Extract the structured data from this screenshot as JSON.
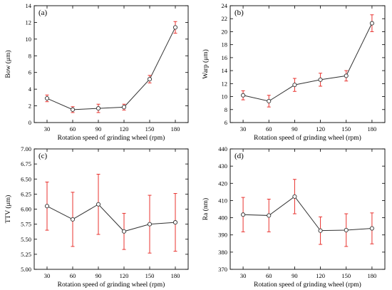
{
  "chart_data": [
    {
      "id": "a",
      "type": "line",
      "panel_label": "(a)",
      "xlabel": "Rotation speed of grinding wheel (rpm)",
      "ylabel": "Bow (μm)",
      "x": [
        30,
        60,
        90,
        120,
        150,
        180
      ],
      "values": [
        2.9,
        1.55,
        1.7,
        1.85,
        5.2,
        11.4
      ],
      "errors": [
        0.4,
        0.35,
        0.5,
        0.35,
        0.45,
        0.7
      ],
      "ylim": [
        0,
        14
      ],
      "yticks": [
        0,
        2,
        4,
        6,
        8,
        10,
        12,
        14
      ],
      "ytick_labels": [
        "0",
        "2",
        "4",
        "6",
        "8",
        "10",
        "12",
        "14"
      ],
      "xticks": [
        30,
        60,
        90,
        120,
        150,
        180
      ],
      "xtick_labels": [
        "30",
        "60",
        "90",
        "120",
        "150",
        "180"
      ]
    },
    {
      "id": "b",
      "type": "line",
      "panel_label": "(b)",
      "xlabel": "Rotation speed of grinding wheel (rpm)",
      "ylabel": "Warp (μm)",
      "x": [
        30,
        60,
        90,
        120,
        150,
        180
      ],
      "values": [
        10.2,
        9.3,
        11.8,
        12.6,
        13.2,
        21.3
      ],
      "errors": [
        0.7,
        0.9,
        1.0,
        1.0,
        0.8,
        1.3
      ],
      "ylim": [
        6,
        24
      ],
      "yticks": [
        6,
        8,
        10,
        12,
        14,
        16,
        18,
        20,
        22,
        24
      ],
      "ytick_labels": [
        "6",
        "8",
        "10",
        "12",
        "14",
        "16",
        "18",
        "20",
        "22",
        "24"
      ],
      "xticks": [
        30,
        60,
        90,
        120,
        150,
        180
      ],
      "xtick_labels": [
        "30",
        "60",
        "90",
        "120",
        "150",
        "180"
      ]
    },
    {
      "id": "c",
      "type": "line",
      "panel_label": "(c)",
      "xlabel": "Rotation speed of grinding wheel (rpm)",
      "ylabel": "TTV (μm)",
      "x": [
        30,
        60,
        90,
        120,
        150,
        180
      ],
      "values": [
        6.05,
        5.83,
        6.08,
        5.63,
        5.75,
        5.78
      ],
      "errors": [
        0.4,
        0.45,
        0.5,
        0.3,
        0.48,
        0.48
      ],
      "ylim": [
        5.0,
        7.0
      ],
      "yticks": [
        5.0,
        5.25,
        5.5,
        5.75,
        6.0,
        6.25,
        6.5,
        6.75,
        7.0
      ],
      "ytick_labels": [
        "5.00",
        "5.25",
        "5.50",
        "5.75",
        "6.00",
        "6.25",
        "6.50",
        "6.75",
        "7.00"
      ],
      "xticks": [
        30,
        60,
        90,
        120,
        150,
        180
      ],
      "xtick_labels": [
        "30",
        "60",
        "90",
        "120",
        "150",
        "180"
      ]
    },
    {
      "id": "d",
      "type": "line",
      "panel_label": "(d)",
      "xlabel": "Rotation speed of grinding wheel (rpm)",
      "ylabel": "Ra (nm)",
      "x": [
        30,
        60,
        90,
        120,
        150,
        180
      ],
      "values": [
        401.8,
        401.3,
        412.3,
        392.5,
        392.8,
        393.8
      ],
      "errors": [
        10,
        9.5,
        10,
        8,
        9.5,
        9
      ],
      "ylim": [
        370,
        440
      ],
      "yticks": [
        370,
        380,
        390,
        400,
        410,
        420,
        430,
        440
      ],
      "ytick_labels": [
        "370",
        "380",
        "390",
        "400",
        "410",
        "420",
        "430",
        "440"
      ],
      "xticks": [
        30,
        60,
        90,
        120,
        150,
        180
      ],
      "xtick_labels": [
        "30",
        "60",
        "90",
        "120",
        "150",
        "180"
      ]
    }
  ],
  "style": {
    "line_color": "#333333",
    "error_color": "#e8332f",
    "marker_fill": "#ffffff"
  }
}
